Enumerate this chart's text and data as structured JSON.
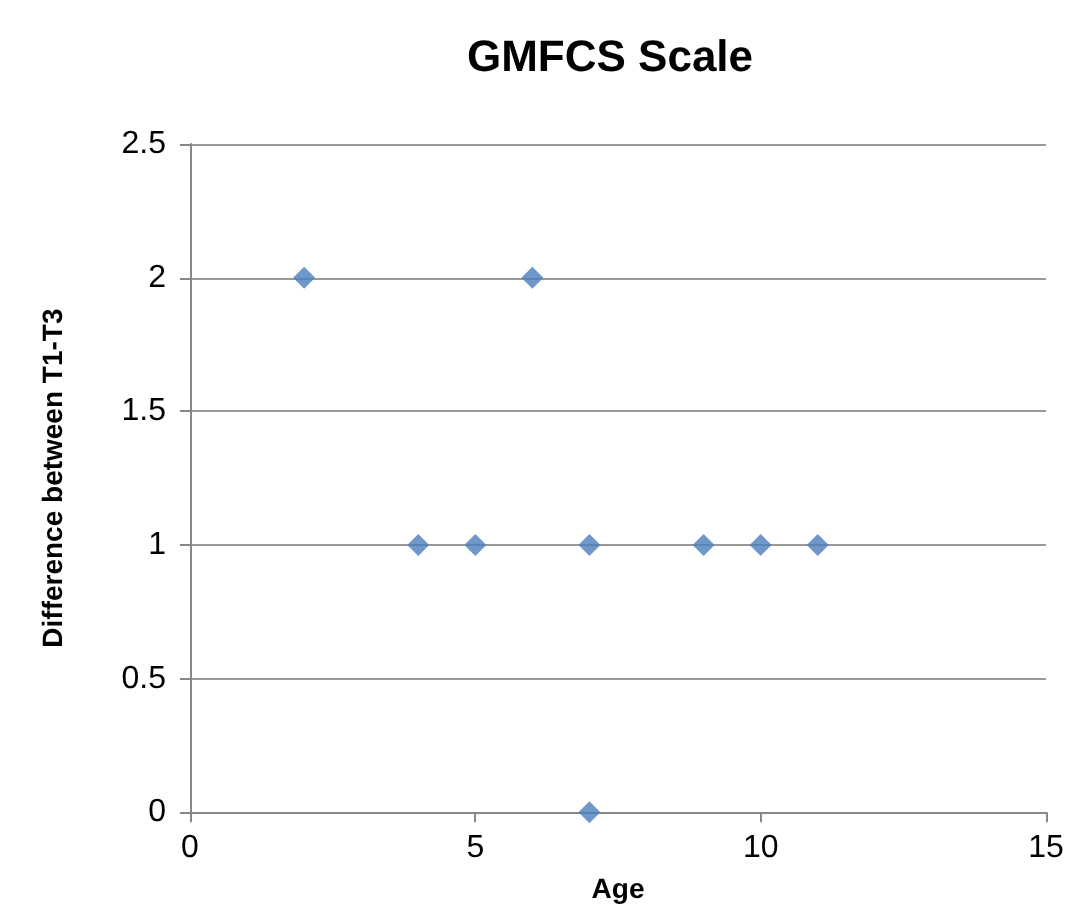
{
  "chart_data": {
    "type": "scatter",
    "title": "GMFCS Scale",
    "xlabel": "Age",
    "ylabel": "Difference between T1-T3",
    "x": [
      2,
      6,
      4,
      5,
      7,
      9,
      10,
      11,
      7
    ],
    "series": [
      {
        "color": "#4a7ebb",
        "values": [
          2,
          2,
          1,
          1,
          1,
          1,
          1,
          1,
          0
        ]
      }
    ],
    "xlim": [
      0,
      15
    ],
    "xticks": [
      0,
      5,
      10,
      15
    ],
    "ylim": [
      0,
      2.5
    ],
    "yticks": [
      0,
      0.5,
      1,
      1.5,
      2,
      2.5
    ],
    "grid": "y",
    "marker": "diamond"
  }
}
